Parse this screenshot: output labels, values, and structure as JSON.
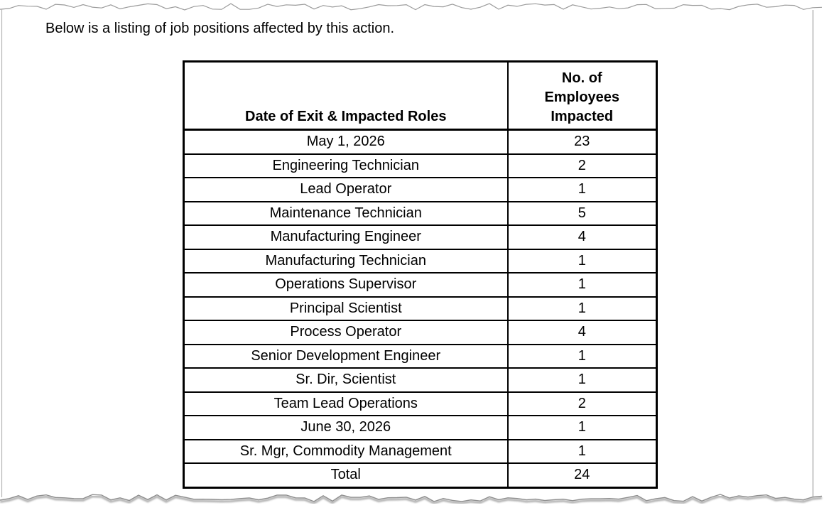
{
  "page": {
    "intro_text": "Below is a listing of job positions affected by this action."
  },
  "table": {
    "col1_header": "Date of Exit & Impacted Roles",
    "col2_header": "No. of Employees Impacted",
    "rows": [
      {
        "type": "group",
        "label": "May 1, 2026",
        "value": "23"
      },
      {
        "type": "item",
        "label": "Engineering Technician",
        "value": "2"
      },
      {
        "type": "item",
        "label": "Lead Operator",
        "value": "1"
      },
      {
        "type": "item",
        "label": "Maintenance Technician",
        "value": "5"
      },
      {
        "type": "item",
        "label": "Manufacturing Engineer",
        "value": "4"
      },
      {
        "type": "item",
        "label": "Manufacturing Technician",
        "value": "1"
      },
      {
        "type": "item",
        "label": "Operations Supervisor",
        "value": "1"
      },
      {
        "type": "item",
        "label": "Principal Scientist",
        "value": "1"
      },
      {
        "type": "item",
        "label": "Process Operator",
        "value": "4"
      },
      {
        "type": "item",
        "label": "Senior Development Engineer",
        "value": "1"
      },
      {
        "type": "item",
        "label": "Sr. Dir, Scientist",
        "value": "1"
      },
      {
        "type": "item",
        "label": "Team Lead Operations",
        "value": "2"
      },
      {
        "type": "group",
        "label": "June 30, 2026",
        "value": "1"
      },
      {
        "type": "item",
        "label": "Sr. Mgr, Commodity Management",
        "value": "1"
      },
      {
        "type": "total",
        "label": "Total",
        "value": "24"
      }
    ]
  }
}
